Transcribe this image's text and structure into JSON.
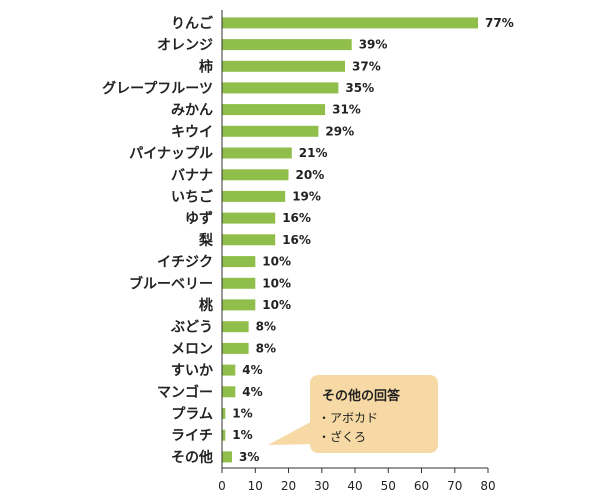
{
  "chart_data": {
    "type": "bar",
    "orientation": "horizontal",
    "categories": [
      "りんご",
      "オレンジ",
      "柿",
      "グレープフルーツ",
      "みかん",
      "キウイ",
      "パイナップル",
      "バナナ",
      "いちご",
      "ゆず",
      "梨",
      "イチジク",
      "ブルーベリー",
      "桃",
      "ぶどう",
      "メロン",
      "すいか",
      "マンゴー",
      "プラム",
      "ライチ",
      "その他"
    ],
    "values": [
      77,
      39,
      37,
      35,
      31,
      29,
      21,
      20,
      19,
      16,
      16,
      10,
      10,
      10,
      8,
      8,
      4,
      4,
      1,
      1,
      3
    ],
    "value_labels": [
      "77%",
      "39%",
      "37%",
      "35%",
      "31%",
      "29%",
      "21%",
      "20%",
      "19%",
      "16%",
      "16%",
      "10%",
      "10%",
      "10%",
      "8%",
      "8%",
      "4%",
      "4%",
      "1%",
      "1%",
      "3%"
    ],
    "xlim": [
      0,
      80
    ],
    "xticks": [
      "0",
      "10",
      "20",
      "30",
      "40",
      "50",
      "60",
      "70",
      "80"
    ],
    "bar_color": "#8fbf4a",
    "grid": false
  },
  "callout": {
    "title": "その他の回答",
    "items": [
      "・アボカド",
      "・ざくろ"
    ],
    "color": "#f6d9a4"
  }
}
